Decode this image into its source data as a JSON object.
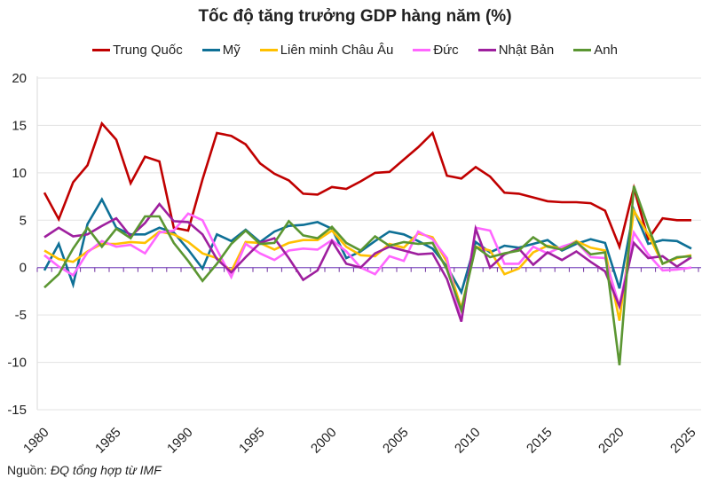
{
  "chart_data": {
    "type": "line",
    "title": "Tốc độ tăng trưởng GDP hàng năm (%)",
    "xlabel": "",
    "ylabel": "",
    "ylim": [
      -15,
      20
    ],
    "yticks": [
      -15,
      -10,
      -5,
      0,
      5,
      10,
      15,
      20
    ],
    "xlim": [
      1980,
      2025
    ],
    "xticks": [
      1980,
      1985,
      1990,
      1995,
      2000,
      2005,
      2010,
      2015,
      2020,
      2025
    ],
    "grid": true,
    "legend_position": "top",
    "x": [
      1980,
      1981,
      1982,
      1983,
      1984,
      1985,
      1986,
      1987,
      1988,
      1989,
      1990,
      1991,
      1992,
      1993,
      1994,
      1995,
      1996,
      1997,
      1998,
      1999,
      2000,
      2001,
      2002,
      2003,
      2004,
      2005,
      2006,
      2007,
      2008,
      2009,
      2010,
      2011,
      2012,
      2013,
      2014,
      2015,
      2016,
      2017,
      2018,
      2019,
      2020,
      2021,
      2022,
      2023,
      2024,
      2025
    ],
    "series": [
      {
        "name": "Trung Quốc",
        "color": "#c00000",
        "values": [
          7.9,
          5.1,
          9.0,
          10.8,
          15.2,
          13.5,
          8.9,
          11.7,
          11.2,
          4.2,
          3.9,
          9.3,
          14.2,
          13.9,
          13.0,
          11.0,
          9.9,
          9.2,
          7.8,
          7.7,
          8.5,
          8.3,
          9.1,
          10.0,
          10.1,
          11.4,
          12.7,
          14.2,
          9.7,
          9.4,
          10.6,
          9.6,
          7.9,
          7.8,
          7.4,
          7.0,
          6.9,
          6.9,
          6.8,
          6.0,
          2.2,
          8.4,
          3.0,
          5.2,
          5.0,
          5.0
        ]
      },
      {
        "name": "Mỹ",
        "color": "#0e7096",
        "values": [
          -0.3,
          2.5,
          -1.8,
          4.6,
          7.2,
          4.2,
          3.5,
          3.5,
          4.2,
          3.7,
          1.9,
          -0.1,
          3.5,
          2.8,
          4.0,
          2.7,
          3.8,
          4.4,
          4.5,
          4.8,
          4.1,
          1.0,
          1.7,
          2.8,
          3.8,
          3.5,
          2.8,
          2.0,
          0.1,
          -2.6,
          2.7,
          1.6,
          2.3,
          2.1,
          2.5,
          2.9,
          1.8,
          2.5,
          3.0,
          2.6,
          -2.2,
          6.1,
          2.5,
          2.9,
          2.8,
          2.0
        ]
      },
      {
        "name": "Liên minh Châu Âu",
        "color": "#ffc000",
        "values": [
          1.8,
          0.9,
          0.6,
          1.7,
          2.5,
          2.5,
          2.7,
          2.6,
          3.8,
          3.5,
          2.7,
          1.5,
          1.0,
          -0.4,
          2.7,
          2.6,
          1.9,
          2.6,
          2.9,
          2.9,
          3.9,
          2.2,
          1.3,
          1.2,
          2.5,
          2.1,
          3.6,
          3.2,
          0.6,
          -4.3,
          2.2,
          1.8,
          -0.7,
          -0.1,
          1.6,
          2.3,
          2.0,
          2.8,
          2.1,
          1.8,
          -5.6,
          6.0,
          3.5,
          0.4,
          1.0,
          1.3
        ]
      },
      {
        "name": "Đức",
        "color": "#ff66ff",
        "values": [
          1.3,
          0.1,
          -0.8,
          1.6,
          2.8,
          2.2,
          2.4,
          1.5,
          3.7,
          3.9,
          5.7,
          5.0,
          1.9,
          -1.0,
          2.5,
          1.5,
          0.8,
          1.8,
          2.0,
          1.9,
          2.9,
          1.7,
          0.0,
          -0.7,
          1.2,
          0.7,
          3.8,
          3.0,
          1.0,
          -5.7,
          4.2,
          3.9,
          0.4,
          0.4,
          2.2,
          1.5,
          2.2,
          2.7,
          1.1,
          1.0,
          -4.1,
          3.7,
          1.4,
          -0.3,
          -0.2,
          0.0
        ]
      },
      {
        "name": "Nhật Bản",
        "color": "#9e1f9e",
        "values": [
          3.2,
          4.2,
          3.3,
          3.5,
          4.4,
          5.2,
          3.3,
          4.7,
          6.7,
          4.9,
          4.8,
          3.5,
          0.9,
          -0.5,
          1.1,
          2.6,
          3.1,
          1.0,
          -1.3,
          -0.3,
          2.8,
          0.4,
          0.0,
          1.5,
          2.2,
          1.8,
          1.4,
          1.5,
          -1.2,
          -5.7,
          4.1,
          0.0,
          1.4,
          2.0,
          0.3,
          1.6,
          0.8,
          1.7,
          0.6,
          -0.4,
          -4.1,
          2.6,
          1.0,
          1.2,
          0.1,
          1.1
        ]
      },
      {
        "name": "Anh",
        "color": "#5b9632",
        "values": [
          -2.1,
          -0.7,
          2.0,
          4.2,
          2.2,
          4.1,
          3.1,
          5.4,
          5.4,
          2.6,
          0.7,
          -1.4,
          0.4,
          2.5,
          3.9,
          2.5,
          2.6,
          4.9,
          3.4,
          3.1,
          4.3,
          2.6,
          1.8,
          3.3,
          2.3,
          2.7,
          2.5,
          2.6,
          -0.2,
          -4.5,
          2.2,
          1.1,
          1.5,
          1.8,
          3.2,
          2.2,
          1.9,
          2.7,
          1.4,
          1.6,
          -10.3,
          8.6,
          4.3,
          0.4,
          1.1,
          1.2
        ]
      }
    ]
  },
  "source": {
    "label": "Nguồn:",
    "text": "ĐQ tổng hợp từ IMF"
  }
}
